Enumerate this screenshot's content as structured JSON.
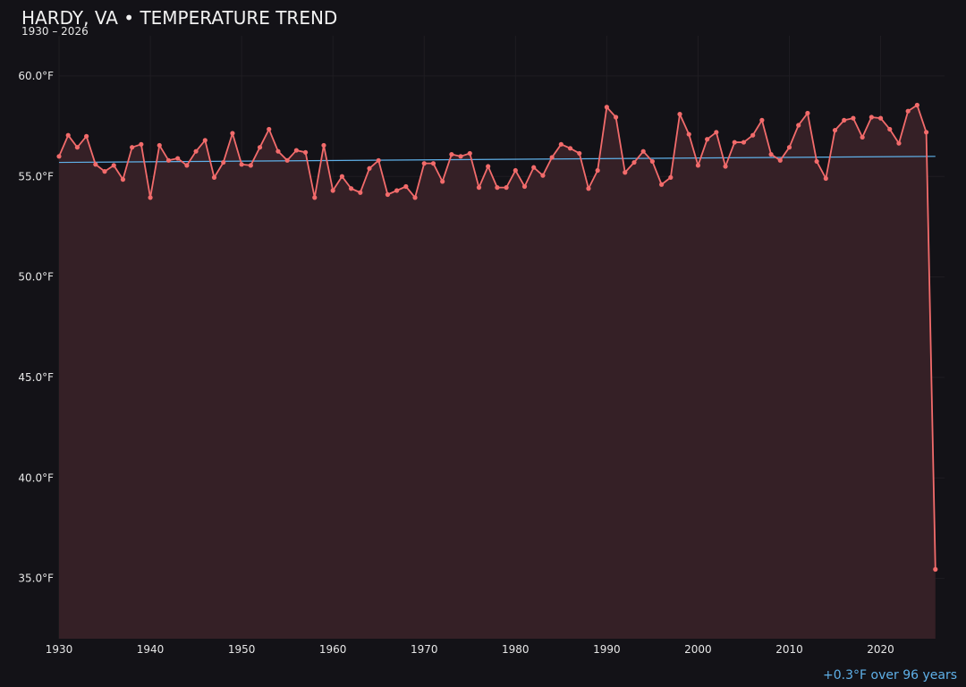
{
  "chart_data": {
    "type": "line",
    "title": "HARDY, VA • TEMPERATURE TREND",
    "subtitle": "1930 – 2026",
    "xlabel": "",
    "ylabel": "",
    "xlim": [
      1930,
      2027
    ],
    "ylim": [
      32,
      62
    ],
    "x_ticks": [
      1930,
      1940,
      1950,
      1960,
      1970,
      1980,
      1990,
      2000,
      2010,
      2020
    ],
    "y_ticks": [
      35,
      40,
      45,
      50,
      55,
      60
    ],
    "y_tick_labels": [
      "35.0°F",
      "40.0°F",
      "45.0°F",
      "50.0°F",
      "55.0°F",
      "60.0°F"
    ],
    "grid": true,
    "colors": {
      "background": "#131217",
      "line": "#f26b6b",
      "area_fill": "#352026",
      "trend": "#5fb0e8",
      "grid": "#1f1d22"
    },
    "series": [
      {
        "x": [
          1930,
          1931,
          1932,
          1933,
          1934,
          1935,
          1936,
          1937,
          1938,
          1939,
          1940,
          1941,
          1942,
          1943,
          1944,
          1945,
          1946,
          1947,
          1948,
          1949,
          1950,
          1951,
          1952,
          1953,
          1954,
          1955,
          1956,
          1957,
          1958,
          1959,
          1960,
          1961,
          1962,
          1963,
          1964,
          1965,
          1966,
          1967,
          1968,
          1969,
          1970,
          1971,
          1972,
          1973,
          1974,
          1975,
          1976,
          1977,
          1978,
          1979,
          1980,
          1981,
          1982,
          1983,
          1984,
          1985,
          1986,
          1987,
          1988,
          1989,
          1990,
          1991,
          1992,
          1993,
          1994,
          1995,
          1996,
          1997,
          1998,
          1999,
          2000,
          2001,
          2002,
          2003,
          2004,
          2005,
          2006,
          2007,
          2008,
          2009,
          2010,
          2011,
          2012,
          2013,
          2014,
          2015,
          2016,
          2017,
          2018,
          2019,
          2020,
          2021,
          2022,
          2023,
          2024,
          2025,
          2026
        ],
        "values": [
          56.0,
          57.05,
          56.45,
          57.0,
          55.6,
          55.25,
          55.55,
          54.85,
          56.45,
          56.6,
          53.95,
          56.55,
          55.8,
          55.9,
          55.55,
          56.25,
          56.8,
          54.95,
          55.7,
          57.15,
          55.6,
          55.55,
          56.45,
          57.35,
          56.25,
          55.8,
          56.3,
          56.2,
          53.95,
          56.55,
          54.3,
          55.0,
          54.4,
          54.2,
          55.4,
          55.8,
          54.1,
          54.3,
          54.5,
          53.95,
          55.65,
          55.65,
          54.75,
          56.1,
          56.0,
          56.15,
          54.45,
          55.5,
          54.45,
          54.45,
          55.3,
          54.5,
          55.45,
          55.05,
          55.95,
          56.6,
          56.4,
          56.15,
          54.4,
          55.3,
          58.45,
          57.95,
          55.2,
          55.7,
          56.25,
          55.75,
          54.6,
          54.95,
          58.1,
          57.1,
          55.55,
          56.85,
          57.2,
          55.5,
          56.7,
          56.7,
          57.05,
          57.8,
          56.1,
          55.8,
          56.45,
          57.55,
          58.15,
          55.75,
          54.9,
          57.3,
          57.8,
          57.9,
          56.95,
          57.95,
          57.9,
          57.35,
          56.65,
          58.25,
          58.55,
          57.2,
          35.45
        ]
      }
    ],
    "trend": {
      "x": [
        1930,
        2026
      ],
      "values": [
        55.7,
        56.0
      ]
    },
    "annotation": "+0.3°F over 96 years"
  }
}
